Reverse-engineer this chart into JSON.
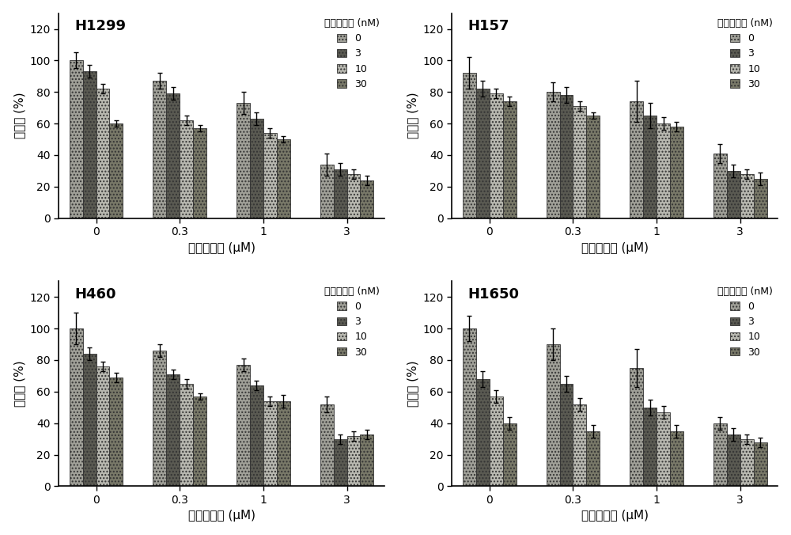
{
  "panels": [
    {
      "title": "H1299",
      "x_labels": [
        "0",
        "0.3",
        "1",
        "3"
      ],
      "series": {
        "0": {
          "values": [
            100,
            87,
            73,
            34
          ],
          "errors": [
            5,
            5,
            7,
            7
          ]
        },
        "3": {
          "values": [
            93,
            79,
            63,
            31
          ],
          "errors": [
            4,
            4,
            4,
            4
          ]
        },
        "10": {
          "values": [
            82,
            62,
            54,
            28
          ],
          "errors": [
            3,
            3,
            3,
            3
          ]
        },
        "30": {
          "values": [
            60,
            57,
            50,
            24
          ],
          "errors": [
            2,
            2,
            2,
            3
          ]
        }
      }
    },
    {
      "title": "H157",
      "x_labels": [
        "0",
        "0.3",
        "1",
        "3"
      ],
      "series": {
        "0": {
          "values": [
            92,
            80,
            74,
            41
          ],
          "errors": [
            10,
            6,
            13,
            6
          ]
        },
        "3": {
          "values": [
            82,
            78,
            65,
            30
          ],
          "errors": [
            5,
            5,
            8,
            4
          ]
        },
        "10": {
          "values": [
            79,
            71,
            60,
            28
          ],
          "errors": [
            3,
            3,
            4,
            3
          ]
        },
        "30": {
          "values": [
            74,
            65,
            58,
            25
          ],
          "errors": [
            3,
            2,
            3,
            4
          ]
        }
      }
    },
    {
      "title": "H460",
      "x_labels": [
        "0",
        "0.3",
        "1",
        "3"
      ],
      "series": {
        "0": {
          "values": [
            100,
            86,
            77,
            52
          ],
          "errors": [
            10,
            4,
            4,
            5
          ]
        },
        "3": {
          "values": [
            84,
            71,
            64,
            30
          ],
          "errors": [
            4,
            3,
            3,
            3
          ]
        },
        "10": {
          "values": [
            76,
            65,
            54,
            32
          ],
          "errors": [
            3,
            3,
            3,
            3
          ]
        },
        "30": {
          "values": [
            69,
            57,
            54,
            33
          ],
          "errors": [
            3,
            2,
            4,
            3
          ]
        }
      }
    },
    {
      "title": "H1650",
      "x_labels": [
        "0",
        "0.3",
        "1",
        "3"
      ],
      "series": {
        "0": {
          "values": [
            100,
            90,
            75,
            40
          ],
          "errors": [
            8,
            10,
            12,
            4
          ]
        },
        "3": {
          "values": [
            68,
            65,
            50,
            33
          ],
          "errors": [
            5,
            5,
            5,
            4
          ]
        },
        "10": {
          "values": [
            57,
            52,
            47,
            30
          ],
          "errors": [
            4,
            4,
            4,
            3
          ]
        },
        "30": {
          "values": [
            40,
            35,
            35,
            28
          ],
          "errors": [
            4,
            4,
            4,
            3
          ]
        }
      }
    }
  ],
  "series_labels": [
    "0",
    "3",
    "10",
    "30"
  ],
  "bar_colors": [
    "#a0a098",
    "#5a5a52",
    "#b8b8b0",
    "#787868"
  ],
  "ylabel": "存活率 (%)",
  "xlabel": "雷公藤红素 (μM)",
  "legend_title": "雷公藤甲素 (nM)",
  "ylim": [
    0,
    130
  ],
  "yticks": [
    0,
    20,
    40,
    60,
    80,
    100,
    120
  ],
  "bar_width": 0.16
}
